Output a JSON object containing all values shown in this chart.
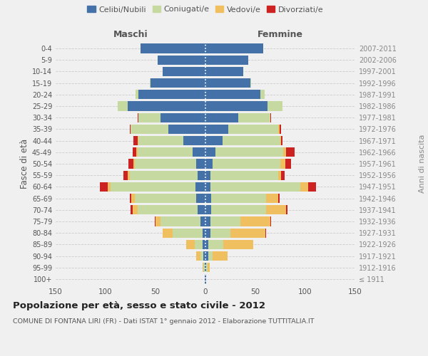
{
  "age_groups": [
    "100+",
    "95-99",
    "90-94",
    "85-89",
    "80-84",
    "75-79",
    "70-74",
    "65-69",
    "60-64",
    "55-59",
    "50-54",
    "45-49",
    "40-44",
    "35-39",
    "30-34",
    "25-29",
    "20-24",
    "15-19",
    "10-14",
    "5-9",
    "0-4"
  ],
  "birth_years": [
    "≤ 1911",
    "1912-1916",
    "1917-1921",
    "1922-1926",
    "1927-1931",
    "1932-1936",
    "1937-1941",
    "1942-1946",
    "1947-1951",
    "1952-1956",
    "1957-1961",
    "1962-1966",
    "1967-1971",
    "1972-1976",
    "1977-1981",
    "1982-1986",
    "1987-1991",
    "1992-1996",
    "1997-2001",
    "2002-2006",
    "2007-2011"
  ],
  "maschi": {
    "celibi": [
      1,
      1,
      2,
      3,
      3,
      5,
      8,
      9,
      10,
      8,
      9,
      13,
      22,
      37,
      45,
      78,
      67,
      55,
      43,
      48,
      65
    ],
    "coniugati": [
      0,
      1,
      3,
      8,
      30,
      40,
      60,
      62,
      85,
      68,
      62,
      55,
      45,
      38,
      22,
      10,
      3,
      1,
      0,
      0,
      0
    ],
    "vedovi": [
      0,
      1,
      4,
      8,
      10,
      5,
      5,
      3,
      3,
      2,
      1,
      1,
      1,
      0,
      0,
      0,
      0,
      0,
      0,
      0,
      0
    ],
    "divorziati": [
      0,
      0,
      0,
      0,
      0,
      1,
      2,
      2,
      8,
      4,
      5,
      4,
      4,
      1,
      1,
      0,
      0,
      0,
      0,
      0,
      0
    ]
  },
  "femmine": {
    "nubili": [
      1,
      1,
      3,
      3,
      5,
      5,
      6,
      6,
      5,
      5,
      7,
      10,
      17,
      23,
      33,
      62,
      55,
      45,
      38,
      43,
      58
    ],
    "coniugate": [
      0,
      1,
      4,
      15,
      20,
      30,
      55,
      55,
      90,
      68,
      68,
      68,
      58,
      50,
      32,
      15,
      4,
      1,
      0,
      0,
      0
    ],
    "vedove": [
      0,
      2,
      15,
      30,
      35,
      30,
      20,
      12,
      8,
      3,
      5,
      3,
      1,
      1,
      0,
      0,
      0,
      0,
      0,
      0,
      0
    ],
    "divorziate": [
      0,
      0,
      0,
      0,
      1,
      1,
      1,
      1,
      8,
      3,
      6,
      8,
      1,
      2,
      1,
      0,
      0,
      0,
      0,
      0,
      0
    ]
  },
  "colors": {
    "celibi": "#4472a8",
    "coniugati": "#c5d9a0",
    "vedovi": "#f0c060",
    "divorziati": "#cc2222"
  },
  "title": "Popolazione per età, sesso e stato civile - 2012",
  "subtitle": "COMUNE DI FONTANA LIRI (FR) - Dati ISTAT 1° gennaio 2012 - Elaborazione TUTTITALIA.IT",
  "xlabel_maschi": "Maschi",
  "xlabel_femmine": "Femmine",
  "ylabel": "Fasce di età",
  "ylabel_right": "Anni di nascita",
  "xlim": 150,
  "legend_labels": [
    "Celibi/Nubili",
    "Coniugati/e",
    "Vedovi/e",
    "Divorziati/e"
  ],
  "background_color": "#f0f0f0"
}
